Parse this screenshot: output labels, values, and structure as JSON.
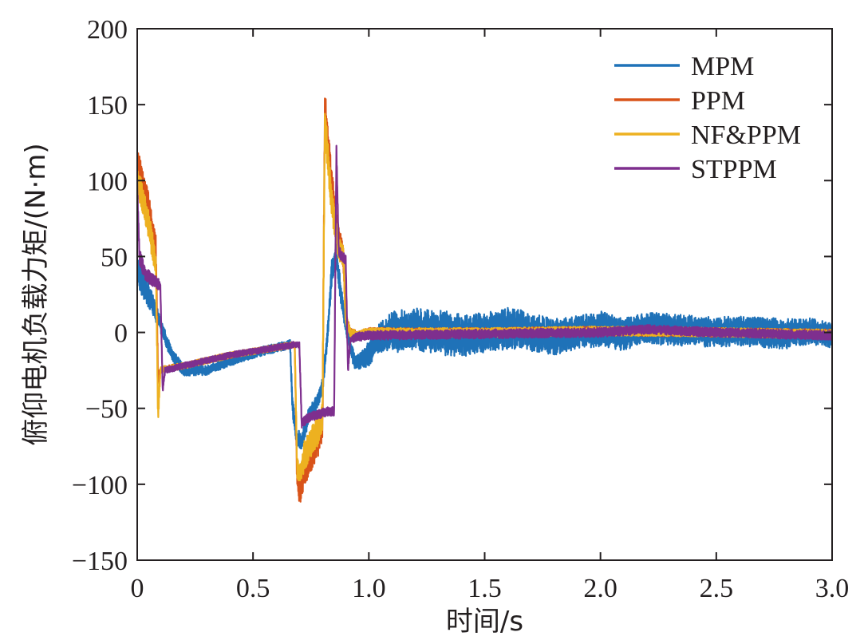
{
  "chart_data": {
    "type": "line",
    "xlabel": "时间/s",
    "ylabel": "俯仰电机负载力矩/(N·m)",
    "xlim": [
      0,
      3.0
    ],
    "ylim": [
      -150,
      200
    ],
    "x_ticks": [
      0,
      0.5,
      1.0,
      1.5,
      2.0,
      2.5,
      3.0
    ],
    "x_tick_labels": [
      "0",
      "0.5",
      "1.0",
      "1.5",
      "2.0",
      "2.5",
      "3.0"
    ],
    "y_ticks": [
      -150,
      -100,
      -50,
      0,
      50,
      100,
      150,
      200
    ],
    "y_tick_labels": [
      "−150",
      "−100",
      "−50",
      "0",
      "50",
      "100",
      "150",
      "200"
    ],
    "grid": false,
    "legend_position": "top-right",
    "series": [
      {
        "name": "MPM",
        "color": "#1f72b8",
        "x": [
          0,
          0.03,
          0.06,
          0.1,
          0.15,
          0.2,
          0.3,
          0.4,
          0.5,
          0.6,
          0.66,
          0.67,
          0.69,
          0.71,
          0.74,
          0.78,
          0.8,
          0.82,
          0.84,
          0.86,
          0.88,
          0.9,
          0.92,
          0.94,
          0.97,
          1.0,
          1.05,
          1.1,
          1.2,
          1.3,
          1.4,
          1.5,
          1.6,
          1.7,
          1.8,
          1.9,
          2.0,
          2.1,
          2.2,
          2.3,
          2.4,
          2.5,
          2.6,
          2.7,
          2.8,
          2.9,
          3.0
        ],
        "y": [
          40,
          30,
          22,
          5,
          -15,
          -25,
          -25,
          -19,
          -14,
          -10,
          -8,
          -48,
          -70,
          -72,
          -55,
          -45,
          -35,
          -5,
          40,
          50,
          25,
          5,
          -10,
          -20,
          -18,
          -14,
          -3,
          0,
          2,
          0,
          -2,
          0,
          3,
          0,
          -3,
          0,
          2,
          -1,
          3,
          2,
          1,
          0,
          1,
          0,
          -1,
          1,
          -2
        ],
        "noise_amplitude": [
          10,
          9,
          8,
          5,
          4,
          4,
          3,
          3,
          3,
          3,
          3,
          6,
          6,
          6,
          5,
          5,
          5,
          6,
          8,
          8,
          7,
          6,
          5,
          5,
          6,
          8,
          10,
          14,
          14,
          15,
          14,
          13,
          14,
          13,
          12,
          11,
          12,
          11,
          10,
          11,
          10,
          10,
          10,
          10,
          10,
          9,
          8
        ]
      },
      {
        "name": "PPM",
        "color": "#d95319",
        "x": [
          0,
          0.02,
          0.05,
          0.08,
          0.09,
          0.1,
          0.12,
          0.2,
          0.4,
          0.6,
          0.68,
          0.69,
          0.7,
          0.72,
          0.75,
          0.78,
          0.8,
          0.81,
          0.82,
          0.84,
          0.87,
          0.89,
          0.9,
          0.92,
          0.95,
          1.0,
          1.5,
          2.0,
          2.5,
          3.0
        ],
        "y": [
          110,
          100,
          80,
          55,
          -30,
          -25,
          -24,
          -22,
          -15,
          -10,
          -8,
          -95,
          -105,
          -90,
          -80,
          -70,
          -60,
          150,
          130,
          95,
          60,
          50,
          10,
          0,
          -2,
          0,
          0,
          1,
          0,
          -1
        ],
        "noise_amplitude": [
          10,
          12,
          12,
          10,
          8,
          2,
          2,
          2,
          2,
          2,
          2,
          8,
          10,
          12,
          12,
          12,
          12,
          12,
          14,
          12,
          10,
          8,
          4,
          3,
          3,
          3,
          3,
          3,
          3,
          3
        ]
      },
      {
        "name": "NF&PPM",
        "color": "#edb120",
        "x": [
          0,
          0.02,
          0.05,
          0.08,
          0.09,
          0.1,
          0.12,
          0.2,
          0.4,
          0.6,
          0.68,
          0.69,
          0.7,
          0.72,
          0.75,
          0.78,
          0.8,
          0.81,
          0.82,
          0.84,
          0.87,
          0.89,
          0.9,
          0.92,
          0.95,
          1.0,
          1.5,
          2.0,
          2.5,
          3.0
        ],
        "y": [
          100,
          90,
          70,
          45,
          -55,
          -25,
          -24,
          -22,
          -15,
          -10,
          -8,
          -88,
          -95,
          -82,
          -72,
          -65,
          -55,
          140,
          120,
          85,
          55,
          50,
          8,
          0,
          -2,
          0,
          0,
          1,
          0,
          -1
        ],
        "noise_amplitude": [
          9,
          10,
          10,
          8,
          8,
          2,
          2,
          2,
          2,
          2,
          2,
          8,
          8,
          10,
          10,
          10,
          10,
          10,
          12,
          10,
          8,
          7,
          4,
          3,
          3,
          3,
          3,
          3,
          3,
          3
        ]
      },
      {
        "name": "STPPM",
        "color": "#7e2f8e",
        "x": [
          0,
          0.01,
          0.03,
          0.06,
          0.09,
          0.1,
          0.11,
          0.12,
          0.2,
          0.4,
          0.6,
          0.68,
          0.7,
          0.71,
          0.74,
          0.78,
          0.82,
          0.85,
          0.86,
          0.87,
          0.88,
          0.9,
          0.91,
          0.92,
          0.95,
          1.0,
          1.5,
          2.0,
          2.2,
          2.5,
          3.0
        ],
        "y": [
          95,
          50,
          40,
          35,
          32,
          30,
          -38,
          -25,
          -22,
          -15,
          -10,
          -8,
          -8,
          -60,
          -56,
          -54,
          -52,
          -52,
          120,
          55,
          50,
          48,
          -25,
          -5,
          -3,
          -2,
          -1,
          0,
          2,
          0,
          -2
        ],
        "noise_amplitude": [
          6,
          5,
          5,
          4,
          4,
          3,
          2,
          2,
          2,
          2,
          2,
          2,
          2,
          3,
          3,
          3,
          3,
          3,
          3,
          4,
          4,
          3,
          2,
          2,
          3,
          3,
          3,
          3,
          3,
          3,
          3
        ]
      }
    ]
  }
}
